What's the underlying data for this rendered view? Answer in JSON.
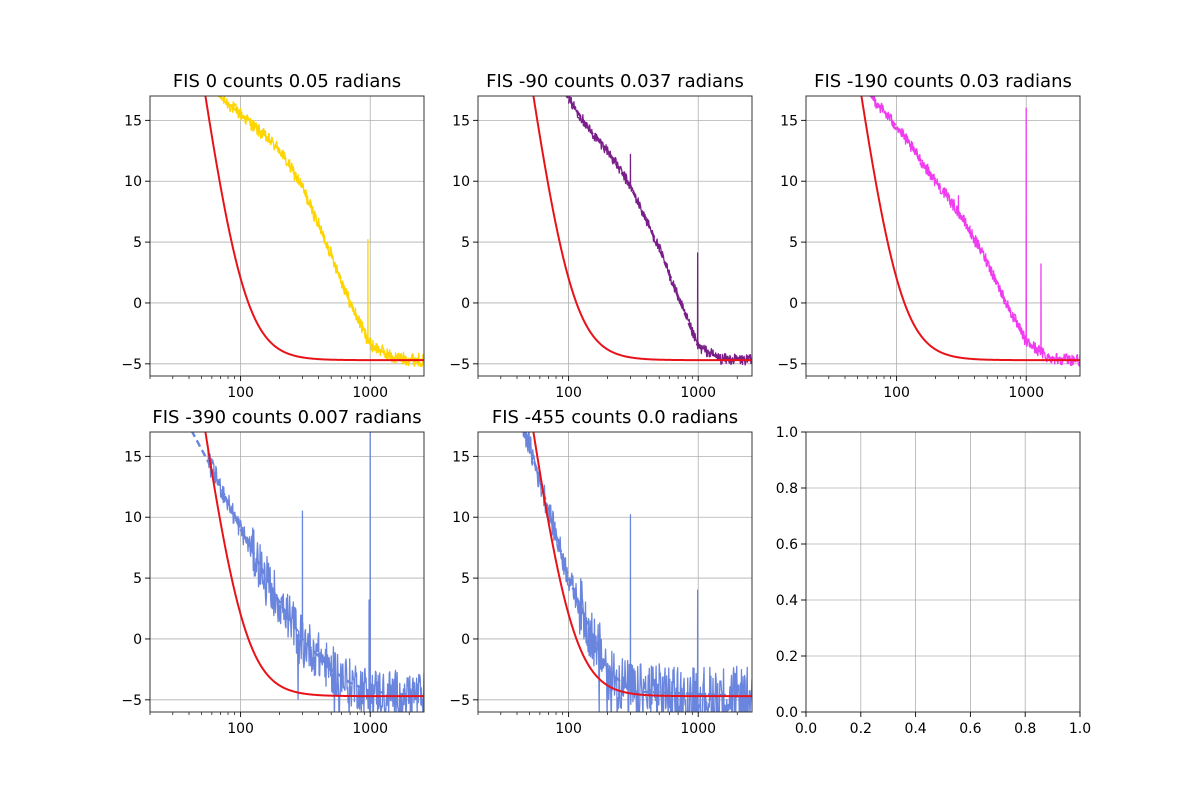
{
  "chart_data": [
    {
      "type": "line",
      "title": "FIS 0 counts 0.05 radians",
      "xscale": "log",
      "xlim": [
        20,
        2600
      ],
      "ylim": [
        -6,
        17
      ],
      "xticks": [
        100,
        1000
      ],
      "xtick_labels": [
        "100",
        "1000"
      ],
      "yticks": [
        -5,
        0,
        5,
        10,
        15
      ],
      "ytick_labels": [
        "−5",
        "0",
        "5",
        "10",
        "15"
      ],
      "grid": true,
      "color": "#FFD500",
      "fit_anchors": [
        [
          60,
          17.5
        ],
        [
          100,
          15.5
        ],
        [
          200,
          12.6
        ],
        [
          300,
          9.5
        ],
        [
          500,
          4.0
        ],
        [
          700,
          0.0
        ],
        [
          1000,
          -3.4
        ],
        [
          1500,
          -4.5
        ],
        [
          2600,
          -4.7
        ]
      ],
      "spikes": [
        [
          960,
          5.2
        ]
      ],
      "data_x_start": 70,
      "noise": 0.55,
      "model": {
        "x0": 100,
        "k": 3.4,
        "floor": -4.7,
        "amp": 9.7
      }
    },
    {
      "type": "line",
      "title": "FIS -90 counts 0.037 radians",
      "xscale": "log",
      "xlim": [
        20,
        2600
      ],
      "ylim": [
        -6,
        17
      ],
      "xticks": [
        100,
        1000
      ],
      "xtick_labels": [
        "100",
        "1000"
      ],
      "yticks": [
        -5,
        0,
        5,
        10,
        15
      ],
      "ytick_labels": [
        "−5",
        "0",
        "5",
        "10",
        "15"
      ],
      "grid": true,
      "color": "#7A1E8A",
      "fit_anchors": [
        [
          90,
          17.5
        ],
        [
          150,
          14.0
        ],
        [
          200,
          12.5
        ],
        [
          300,
          9.6
        ],
        [
          500,
          4.5
        ],
        [
          700,
          0.5
        ],
        [
          1000,
          -3.6
        ],
        [
          1500,
          -4.6
        ],
        [
          2600,
          -4.7
        ]
      ],
      "spikes": [
        [
          300,
          12.2
        ],
        [
          990,
          4.1
        ]
      ],
      "data_x_start": 100,
      "noise": 0.45,
      "model": {
        "x0": 100,
        "k": 3.4,
        "floor": -4.7,
        "amp": 9.7
      }
    },
    {
      "type": "line",
      "title": "FIS -190 counts 0.03 radians",
      "xscale": "log",
      "xlim": [
        20,
        2600
      ],
      "ylim": [
        -6,
        17
      ],
      "xticks": [
        100,
        1000
      ],
      "xtick_labels": [
        "100",
        "1000"
      ],
      "yticks": [
        -5,
        0,
        5,
        10,
        15
      ],
      "ytick_labels": [
        "−5",
        "0",
        "5",
        "10",
        "15"
      ],
      "grid": true,
      "color": "#F03CF0",
      "fit_anchors": [
        [
          60,
          17.3
        ],
        [
          100,
          14.5
        ],
        [
          200,
          10.0
        ],
        [
          300,
          7.5
        ],
        [
          500,
          3.4
        ],
        [
          700,
          0.0
        ],
        [
          1000,
          -3.2
        ],
        [
          1500,
          -4.5
        ],
        [
          2600,
          -4.7
        ]
      ],
      "spikes": [
        [
          300,
          8.8
        ],
        [
          1000,
          16.0
        ],
        [
          1300,
          3.2
        ]
      ],
      "data_x_start": 65,
      "noise": 0.5,
      "model": {
        "x0": 100,
        "k": 3.4,
        "floor": -4.7,
        "amp": 9.7
      }
    },
    {
      "type": "line",
      "title": "FIS -390 counts 0.007 radians",
      "xscale": "log",
      "xlim": [
        20,
        2600
      ],
      "ylim": [
        -6,
        17
      ],
      "xticks": [
        100,
        1000
      ],
      "xtick_labels": [
        "100",
        "1000"
      ],
      "yticks": [
        -5,
        0,
        5,
        10,
        15
      ],
      "ytick_labels": [
        "−5",
        "0",
        "5",
        "10",
        "15"
      ],
      "grid": true,
      "color": "#6A85DD",
      "fit_anchors": [
        [
          40,
          17.5
        ],
        [
          60,
          14.0
        ],
        [
          100,
          9.0
        ],
        [
          150,
          5.5
        ],
        [
          200,
          3.0
        ],
        [
          300,
          0.0
        ],
        [
          500,
          -2.5
        ],
        [
          700,
          -3.6
        ],
        [
          1000,
          -4.3
        ],
        [
          2600,
          -4.7
        ]
      ],
      "spikes": [
        [
          300,
          10.5
        ],
        [
          980,
          3.2
        ],
        [
          1000,
          17.0
        ]
      ],
      "data_x_start": 55,
      "noise": 0.9,
      "model": {
        "x0": 100,
        "k": 3.4,
        "floor": -4.7,
        "amp": 9.7
      }
    },
    {
      "type": "line",
      "title": "FIS -455 counts 0.0 radians",
      "xscale": "log",
      "xlim": [
        20,
        2600
      ],
      "ylim": [
        -6,
        17
      ],
      "xticks": [
        100,
        1000
      ],
      "xtick_labels": [
        "100",
        "1000"
      ],
      "yticks": [
        -5,
        0,
        5,
        10,
        15
      ],
      "ytick_labels": [
        "−5",
        "0",
        "5",
        "10",
        "15"
      ],
      "grid": true,
      "color": "#6A85DD",
      "fit_anchors": [
        [
          45,
          17.5
        ],
        [
          60,
          13.0
        ],
        [
          80,
          8.5
        ],
        [
          100,
          5.0
        ],
        [
          150,
          0.5
        ],
        [
          200,
          -2.5
        ],
        [
          300,
          -4.3
        ],
        [
          2600,
          -4.7
        ]
      ],
      "spikes": [
        [
          28,
          13.8
        ],
        [
          300,
          10.2
        ],
        [
          990,
          4.0
        ]
      ],
      "data_x_start": 28,
      "noise": 1.1,
      "model": {
        "x0": 100,
        "k": 3.4,
        "floor": -4.7,
        "amp": 9.7
      }
    },
    {
      "type": "empty",
      "title": "",
      "xlim": [
        0,
        1
      ],
      "ylim": [
        0,
        1
      ],
      "xticks": [
        0,
        0.2,
        0.4,
        0.6,
        0.8,
        1.0
      ],
      "xtick_labels": [
        "0.0",
        "0.2",
        "0.4",
        "0.6",
        "0.8",
        "1.0"
      ],
      "yticks": [
        0,
        0.2,
        0.4,
        0.6,
        0.8,
        1.0
      ],
      "ytick_labels": [
        "0.0",
        "0.2",
        "0.4",
        "0.6",
        "0.8",
        "1.0"
      ],
      "grid": true
    }
  ],
  "colors": {
    "model_line": "#E8131A",
    "grid": "#b0b0b0",
    "spine": "#333333"
  }
}
